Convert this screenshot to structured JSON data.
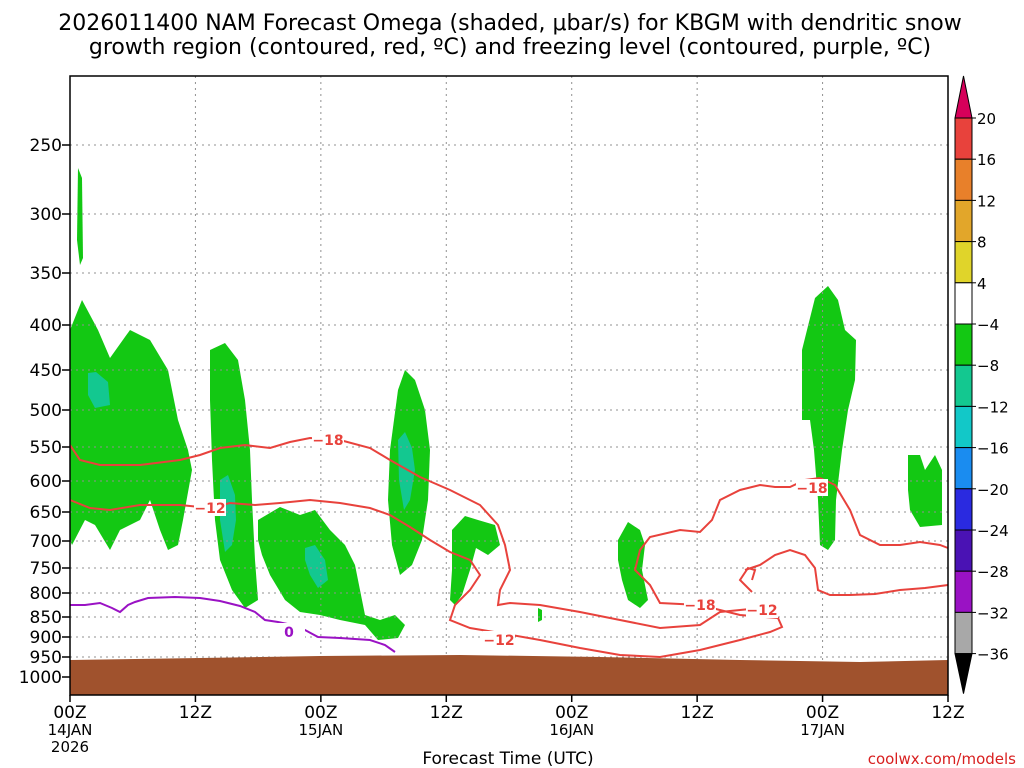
{
  "title_line1": "2026011400 NAM Forecast Omega (shaded, μbar/s) for KBGM with dendritic snow",
  "title_line2": "growth region (contoured, red, ºC) and freezing level (contoured, purple, ºC)",
  "credit": "coolwx.com/models",
  "chart_data": {
    "type": "contour",
    "xlabel": "Forecast Time (UTC)",
    "ylabel": "",
    "x_ticks": [
      {
        "hour": 0,
        "l1": "00Z",
        "l2": "14JAN",
        "l3": "2026"
      },
      {
        "hour": 12,
        "l1": "12Z",
        "l2": "",
        "l3": ""
      },
      {
        "hour": 24,
        "l1": "00Z",
        "l2": "15JAN",
        "l3": ""
      },
      {
        "hour": 36,
        "l1": "12Z",
        "l2": "",
        "l3": ""
      },
      {
        "hour": 48,
        "l1": "00Z",
        "l2": "16JAN",
        "l3": ""
      },
      {
        "hour": 60,
        "l1": "12Z",
        "l2": "",
        "l3": ""
      },
      {
        "hour": 72,
        "l1": "00Z",
        "l2": "17JAN",
        "l3": ""
      },
      {
        "hour": 84,
        "l1": "12Z",
        "l2": "",
        "l3": ""
      }
    ],
    "xlim": [
      0,
      84
    ],
    "y_ticks": [
      "250",
      "300",
      "350",
      "400",
      "450",
      "500",
      "550",
      "600",
      "650",
      "700",
      "750",
      "800",
      "850",
      "900",
      "950",
      "1000"
    ],
    "ylim_hpa": [
      1000,
      200
    ],
    "grid": true,
    "colorbar": {
      "labels": [
        "20",
        "16",
        "12",
        "8",
        "4",
        "−4",
        "−8",
        "−12",
        "−16",
        "−20",
        "−24",
        "−28",
        "−32",
        "−36"
      ],
      "colors": [
        "#d6005a",
        "#e8423c",
        "#e8802a",
        "#e2a62a",
        "#e0d42a",
        "#ffffff",
        "#13c813",
        "#13c890",
        "#12c8c8",
        "#1a8cf0",
        "#2a2ae0",
        "#4a12b4",
        "#9a12c4",
        "#a8a8a8",
        "#000000"
      ]
    },
    "contour_labels": [
      {
        "text": "−18",
        "color": "#e8423c"
      },
      {
        "text": "−12",
        "color": "#e8423c"
      },
      {
        "text": "−12",
        "color": "#e8423c"
      },
      {
        "text": "−18",
        "color": "#e8423c"
      },
      {
        "text": "−12",
        "color": "#e8423c"
      },
      {
        "text": "−18",
        "color": "#e8423c"
      },
      {
        "text": "0",
        "color": "#9a12c4"
      }
    ],
    "terrain_color": "#a0522d",
    "freezing_line_color": "#9a12c4",
    "dgz_line_color": "#e8423c"
  }
}
